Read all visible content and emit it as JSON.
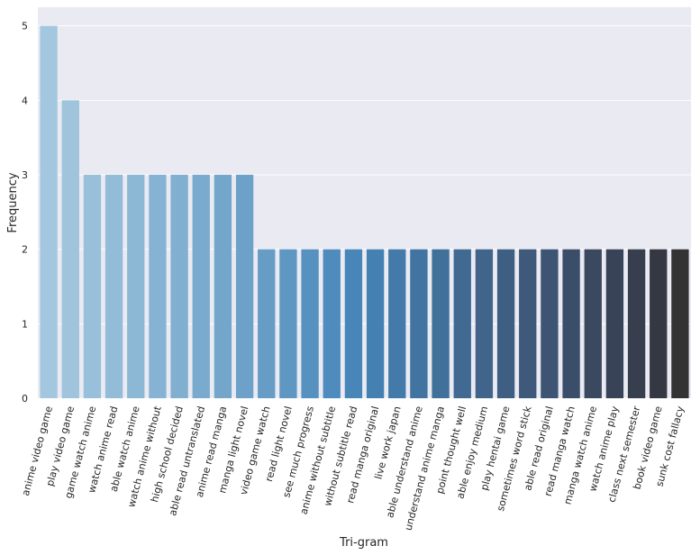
{
  "chart_data": {
    "type": "bar",
    "xlabel": "Tri-gram",
    "ylabel": "Frequency",
    "ylim": [
      0,
      5.25
    ],
    "yticks": [
      0,
      1,
      2,
      3,
      4,
      5
    ],
    "grid": true,
    "background": "#eaeaf2",
    "categories": [
      "anime video game",
      "play video game",
      "game watch anime",
      "watch anime read",
      "able watch anime",
      "watch anime without",
      "high school decided",
      "able read untranslated",
      "anime read manga",
      "manga light novel",
      "video game watch",
      "read light novel",
      "see much progress",
      "anime without subtitle",
      "without subtitle read",
      "read manga original",
      "live work japan",
      "able understand anime",
      "understand anime manga",
      "point thought well",
      "able enjoy medium",
      "play hentai game",
      "sometimes word stick",
      "able read original",
      "read manga watch",
      "manga watch anime",
      "watch anime play",
      "class next semester",
      "book video game",
      "sunk cost fallacy"
    ],
    "values": [
      5,
      4,
      3,
      3,
      3,
      3,
      3,
      3,
      3,
      3,
      2,
      2,
      2,
      2,
      2,
      2,
      2,
      2,
      2,
      2,
      2,
      2,
      2,
      2,
      2,
      2,
      2,
      2,
      2,
      2
    ],
    "colors": [
      "#a3c7de",
      "#9fc4dc",
      "#98c0da",
      "#92bcd8",
      "#8cb8d5",
      "#86b3d3",
      "#80afd0",
      "#7aaace",
      "#74a6cb",
      "#6ea1c9",
      "#669cc6",
      "#5f97c3",
      "#5791c0",
      "#508bbd",
      "#4886b9",
      "#4480b2",
      "#437aaa",
      "#4274a2",
      "#41709a",
      "#416a92",
      "#40648a",
      "#3f5f82",
      "#3e597a",
      "#3d5472",
      "#3b4e69",
      "#3a4960",
      "#394357",
      "#373e4d",
      "#353842",
      "#333333"
    ]
  }
}
